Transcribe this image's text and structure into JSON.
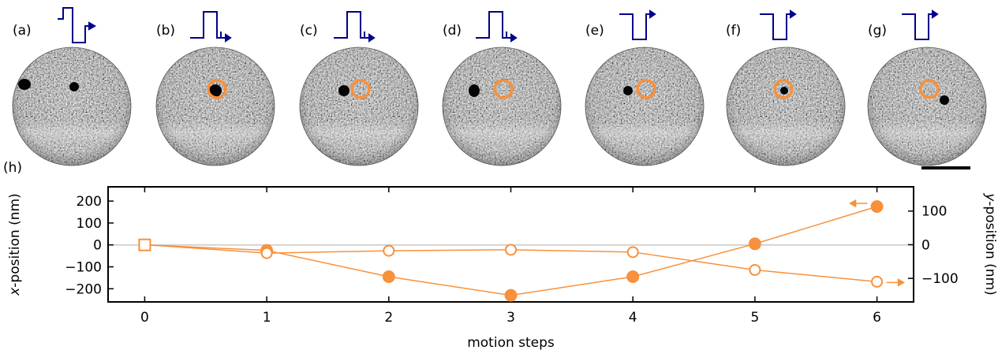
{
  "panels": [
    {
      "label": "(a)",
      "pulse": "up",
      "offset": "single"
    },
    {
      "label": "(b)",
      "pulse": "up",
      "offset": "single"
    },
    {
      "label": "(c)",
      "pulse": "up",
      "offset": "single"
    },
    {
      "label": "(d)",
      "pulse": "up",
      "offset": "single"
    },
    {
      "label": "(e)",
      "pulse": "down",
      "offset": "single"
    },
    {
      "label": "(f)",
      "pulse": "down",
      "offset": "single"
    },
    {
      "label": "(g)",
      "pulse": "down",
      "offset": "single"
    }
  ],
  "plot_label": "(h)",
  "colors": {
    "marker": "#f7913d",
    "pulse": "#00008b",
    "zero_line": "#c8c8c8"
  },
  "chart_data": {
    "type": "line",
    "xlabel": "motion steps",
    "ylabel_left": "x-position (nm)",
    "ylabel_right": "y-position (nm)",
    "xlim": [
      -0.3,
      6.3
    ],
    "ylim_left": [
      -260,
      265
    ],
    "ylim_right": [
      -170,
      172
    ],
    "x_ticks": [
      "0",
      "1",
      "2",
      "3",
      "4",
      "5",
      "6"
    ],
    "y_ticks_left": [
      "200",
      "100",
      "0",
      "−100",
      "−200"
    ],
    "y_ticks_right": [
      "100",
      "0",
      "−100"
    ],
    "series": [
      {
        "marker": "filled",
        "axis": "left",
        "x": [
          0,
          1,
          2,
          3,
          4,
          5,
          6
        ],
        "values": [
          0,
          -25,
          -145,
          -230,
          -145,
          5,
          175
        ]
      },
      {
        "marker": "open",
        "axis": "right",
        "x": [
          0,
          1,
          2,
          3,
          4,
          5,
          6
        ],
        "values": [
          0,
          -25,
          -18,
          -15,
          -22,
          -75,
          -110
        ]
      }
    ],
    "start_marker": "square"
  }
}
